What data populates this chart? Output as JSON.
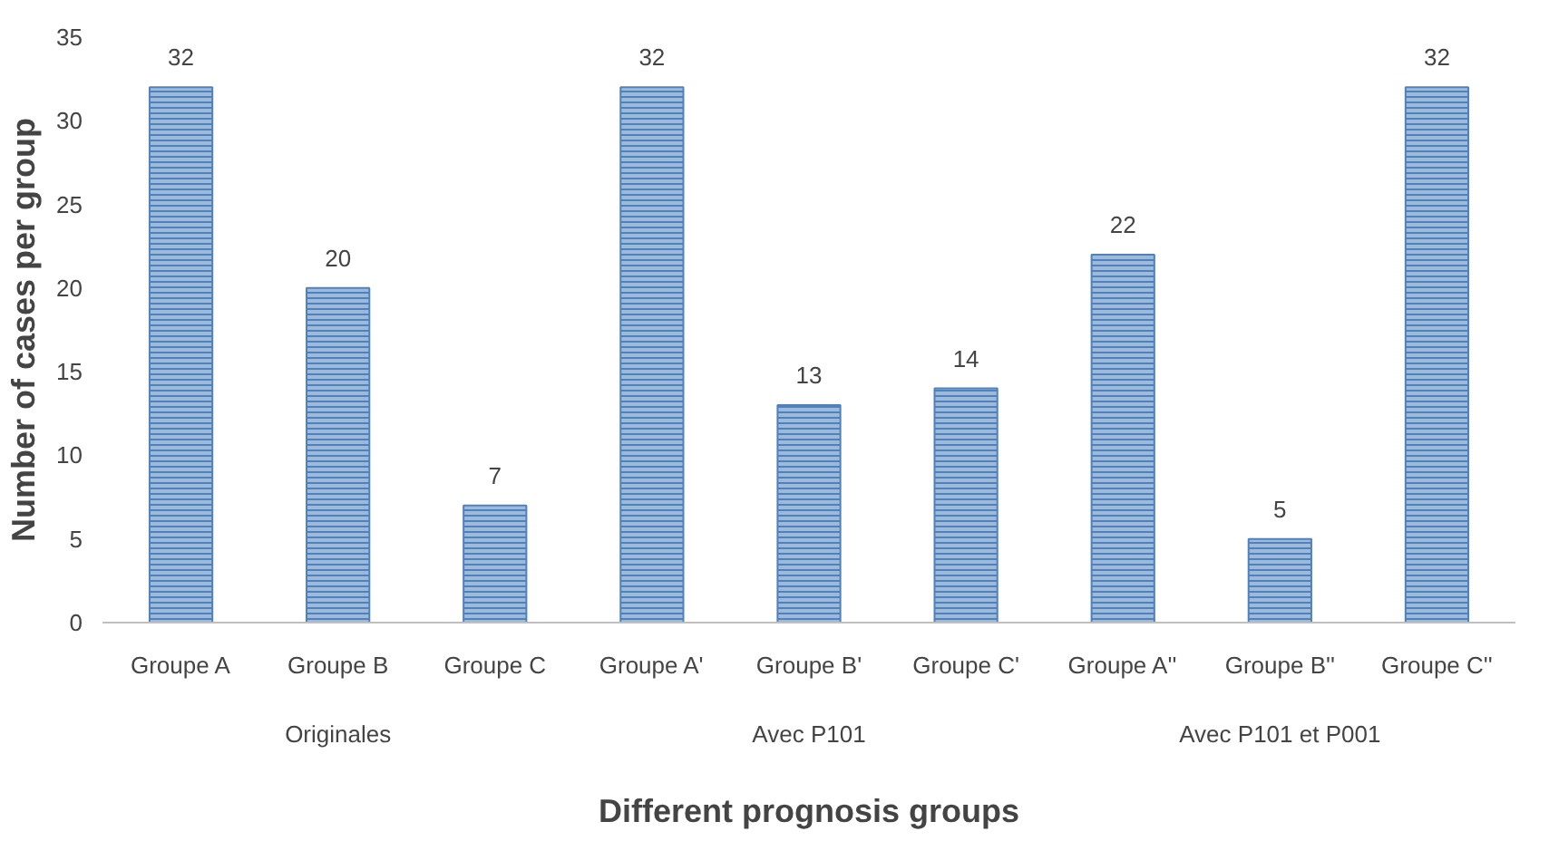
{
  "chart_data": {
    "type": "bar",
    "xlabel": "Different prognosis groups",
    "ylabel": "Number of cases per group",
    "categories": [
      "Groupe A",
      "Groupe B",
      "Groupe C",
      "Groupe A'",
      "Groupe B'",
      "Groupe C'",
      "Groupe A''",
      "Groupe B''",
      "Groupe C''"
    ],
    "values": [
      32,
      20,
      7,
      32,
      13,
      14,
      22,
      5,
      32
    ],
    "color": "#4f81bd",
    "ylim": [
      0,
      35
    ],
    "yticks": [
      0,
      5,
      10,
      15,
      20,
      25,
      30,
      35
    ],
    "data_labels": true,
    "grid": false,
    "annotations": [
      "Originales",
      "Avec P101",
      "Avec P101 et P001"
    ]
  }
}
